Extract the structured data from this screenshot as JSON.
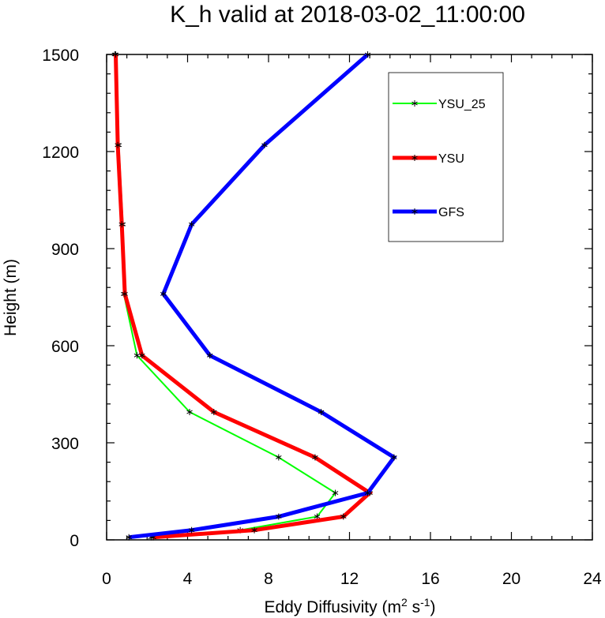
{
  "chart_data": {
    "type": "line",
    "title": "K_h valid at 2018-03-02_11:00:00",
    "xlabel": {
      "main": "Eddy Diffusivity (m",
      "sup1": "2",
      "mid": " s",
      "sup2": "-1",
      "end": ")"
    },
    "ylabel": "Height (m)",
    "xlim": [
      0,
      24
    ],
    "ylim": [
      0,
      1500
    ],
    "xticks": [
      0,
      4,
      8,
      12,
      16,
      20,
      24
    ],
    "yticks": [
      0,
      300,
      600,
      900,
      1200,
      1500
    ],
    "xtick_labels": [
      "0",
      "4",
      "8",
      "12",
      "16",
      "20",
      "24"
    ],
    "ytick_labels": [
      "0",
      "300",
      "600",
      "900",
      "1200",
      "1500"
    ],
    "grid": false,
    "legend_position": "top-right",
    "series": [
      {
        "name": "YSU_25",
        "color": "#00ff00",
        "width": 2,
        "points": [
          {
            "x": 2.2,
            "y": 8
          },
          {
            "x": 6.6,
            "y": 30
          },
          {
            "x": 10.4,
            "y": 72
          },
          {
            "x": 11.3,
            "y": 145
          },
          {
            "x": 8.5,
            "y": 255
          },
          {
            "x": 4.1,
            "y": 395
          },
          {
            "x": 1.5,
            "y": 570
          },
          {
            "x": 0.85,
            "y": 760
          },
          {
            "x": 0.8,
            "y": 975
          },
          {
            "x": 0.6,
            "y": 1220
          },
          {
            "x": 0.4,
            "y": 1500
          }
        ]
      },
      {
        "name": "YSU",
        "color": "#ff0000",
        "width": 5,
        "points": [
          {
            "x": 2.3,
            "y": 8
          },
          {
            "x": 7.3,
            "y": 30
          },
          {
            "x": 11.7,
            "y": 72
          },
          {
            "x": 13.0,
            "y": 145
          },
          {
            "x": 10.3,
            "y": 255
          },
          {
            "x": 5.3,
            "y": 395
          },
          {
            "x": 1.75,
            "y": 570
          },
          {
            "x": 0.9,
            "y": 760
          },
          {
            "x": 0.75,
            "y": 975
          },
          {
            "x": 0.55,
            "y": 1220
          },
          {
            "x": 0.45,
            "y": 1500
          }
        ]
      },
      {
        "name": "GFS",
        "color": "#0000ff",
        "width": 5,
        "points": [
          {
            "x": 1.1,
            "y": 8
          },
          {
            "x": 4.2,
            "y": 30
          },
          {
            "x": 8.5,
            "y": 72
          },
          {
            "x": 12.9,
            "y": 145
          },
          {
            "x": 14.2,
            "y": 255
          },
          {
            "x": 10.6,
            "y": 395
          },
          {
            "x": 5.1,
            "y": 570
          },
          {
            "x": 2.8,
            "y": 760
          },
          {
            "x": 4.2,
            "y": 975
          },
          {
            "x": 7.8,
            "y": 1220
          },
          {
            "x": 12.9,
            "y": 1500
          }
        ]
      }
    ]
  }
}
